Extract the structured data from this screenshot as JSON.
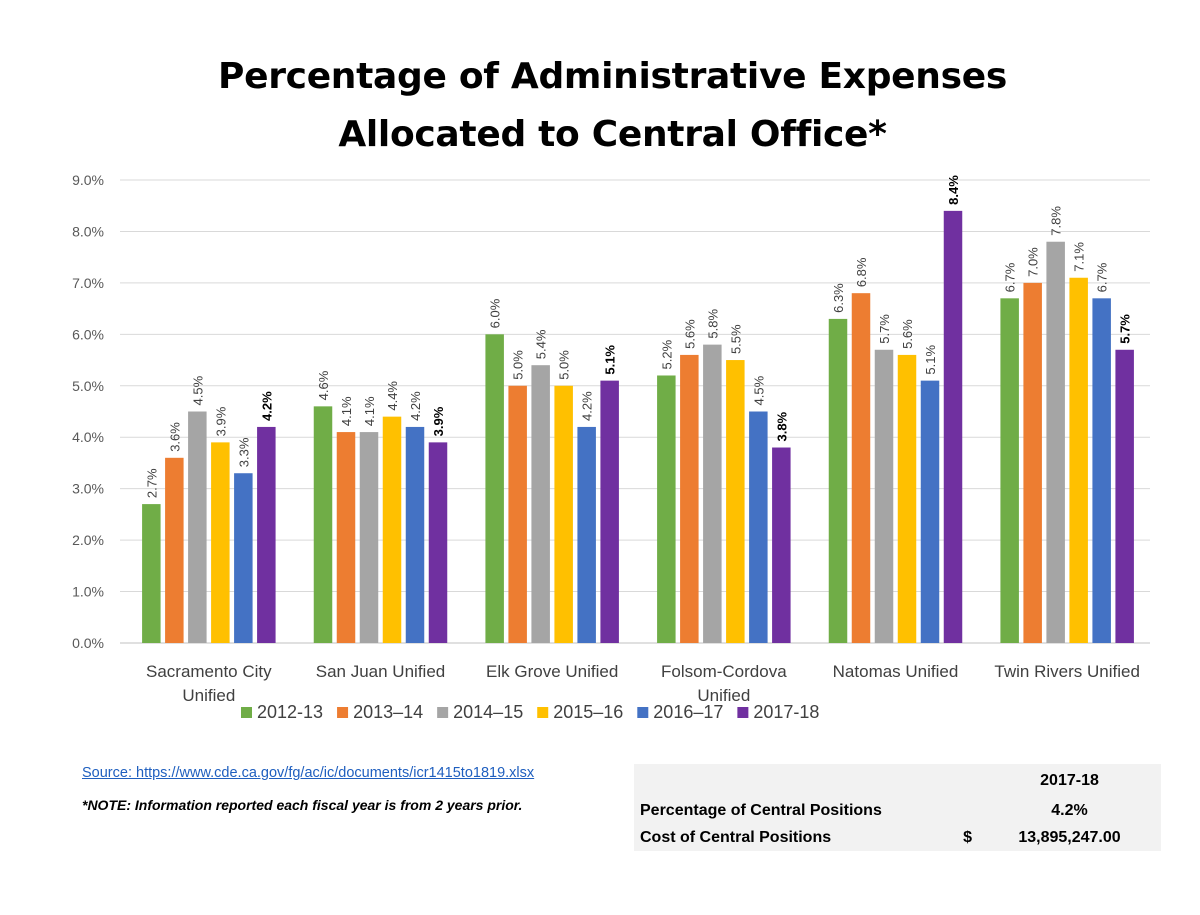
{
  "title_line1": "Percentage of Administrative Expenses",
  "title_line2": "Allocated to Central Office*",
  "chart_data": {
    "type": "bar",
    "categories": [
      [
        "Sacramento City",
        "Unified"
      ],
      [
        "San Juan Unified"
      ],
      [
        "Elk Grove Unified"
      ],
      [
        "Folsom-Cordova",
        "Unified"
      ],
      [
        "Natomas Unified"
      ],
      [
        "Twin Rivers Unified"
      ]
    ],
    "series": [
      {
        "name": "2012-13",
        "color": "#70ad47",
        "values": [
          2.7,
          4.6,
          6.0,
          5.2,
          6.3,
          6.7
        ],
        "labels": [
          "2.7%",
          "4.6%",
          "6.0%",
          "5.2%",
          "6.3%",
          "6.7%"
        ]
      },
      {
        "name": "2013–14",
        "color": "#ed7d31",
        "values": [
          3.6,
          4.1,
          5.0,
          5.6,
          6.8,
          7.0
        ],
        "labels": [
          "3.6%",
          "4.1%",
          "5.0%",
          "5.6%",
          "6.8%",
          "7.0%"
        ]
      },
      {
        "name": "2014–15",
        "color": "#a5a5a5",
        "values": [
          4.5,
          4.1,
          5.4,
          5.8,
          5.7,
          7.8
        ],
        "labels": [
          "4.5%",
          "4.1%",
          "5.4%",
          "5.8%",
          "5.7%",
          "7.8%"
        ]
      },
      {
        "name": "2015–16",
        "color": "#ffc000",
        "values": [
          3.9,
          4.4,
          5.0,
          5.5,
          5.6,
          7.1
        ],
        "labels": [
          "3.9%",
          "4.4%",
          "5.0%",
          "5.5%",
          "5.6%",
          "7.1%"
        ]
      },
      {
        "name": "2016–17",
        "color": "#4472c4",
        "values": [
          3.3,
          4.2,
          4.2,
          4.5,
          5.1,
          6.7
        ],
        "labels": [
          "3.3%",
          "4.2%",
          "4.2%",
          "4.5%",
          "5.1%",
          "6.7%"
        ]
      },
      {
        "name": "2017-18",
        "color": "#7030a0",
        "values": [
          4.2,
          3.9,
          5.1,
          3.8,
          8.4,
          5.7
        ],
        "labels": [
          "4.2%",
          "3.9%",
          "5.1%",
          "3.8%",
          "8.4%",
          "5.7%"
        ],
        "bold_labels": true
      }
    ],
    "ylim": [
      0,
      9
    ],
    "yticks": [
      "0.0%",
      "1.0%",
      "2.0%",
      "3.0%",
      "4.0%",
      "5.0%",
      "6.0%",
      "7.0%",
      "8.0%",
      "9.0%"
    ],
    "grid": true,
    "legend_position": "bottom"
  },
  "source_link": "Source: https://www.cde.ca.gov/fg/ac/ic/documents/icr1415to1819.xlsx",
  "note": "*NOTE: Information reported each fiscal year is from 2 years prior.",
  "summary_table": {
    "header": "2017-18",
    "rows": [
      {
        "label": "Percentage of Central Positions",
        "currency": "",
        "value": "4.2%"
      },
      {
        "label": "Cost of Central Positions",
        "currency": "$",
        "value": "13,895,247.00"
      }
    ]
  }
}
